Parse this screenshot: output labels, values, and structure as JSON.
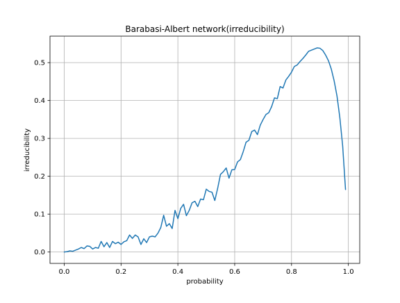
{
  "chart_data": {
    "type": "line",
    "title": "Barabasi-Albert network(irreducibility)",
    "xlabel": "probability",
    "ylabel": "irreducibility",
    "xlim": [
      -0.05,
      1.04
    ],
    "ylim": [
      -0.03,
      0.57
    ],
    "xticks": [
      0.0,
      0.2,
      0.4,
      0.6,
      0.8,
      1.0
    ],
    "xtick_labels": [
      "0.0",
      "0.2",
      "0.4",
      "0.6",
      "0.8",
      "1.0"
    ],
    "yticks": [
      0.0,
      0.1,
      0.2,
      0.3,
      0.4,
      0.5
    ],
    "ytick_labels": [
      "0.0",
      "0.1",
      "0.2",
      "0.3",
      "0.4",
      "0.5"
    ],
    "grid": true,
    "line_color": "#1f77b4",
    "series": [
      {
        "x": [
          0.0,
          0.01,
          0.02,
          0.03,
          0.04,
          0.05,
          0.06,
          0.07,
          0.08,
          0.09,
          0.1,
          0.11,
          0.12,
          0.13,
          0.14,
          0.15,
          0.16,
          0.17,
          0.18,
          0.19,
          0.2,
          0.21,
          0.22,
          0.23,
          0.24,
          0.25,
          0.26,
          0.27,
          0.28,
          0.29,
          0.3,
          0.31,
          0.32,
          0.33,
          0.34,
          0.35,
          0.36,
          0.37,
          0.38,
          0.39,
          0.4,
          0.41,
          0.42,
          0.43,
          0.44,
          0.45,
          0.46,
          0.47,
          0.48,
          0.49,
          0.5,
          0.51,
          0.52,
          0.53,
          0.54,
          0.55,
          0.56,
          0.57,
          0.58,
          0.59,
          0.6,
          0.61,
          0.62,
          0.63,
          0.64,
          0.65,
          0.66,
          0.67,
          0.68,
          0.69,
          0.7,
          0.71,
          0.72,
          0.73,
          0.74,
          0.75,
          0.76,
          0.77,
          0.78,
          0.79,
          0.8,
          0.81,
          0.82,
          0.83,
          0.84,
          0.85,
          0.86,
          0.87,
          0.88,
          0.89,
          0.9,
          0.91,
          0.92,
          0.93,
          0.94,
          0.95,
          0.96,
          0.97,
          0.98,
          0.99
        ],
        "values": [
          0.0,
          0.001,
          0.003,
          0.002,
          0.005,
          0.008,
          0.012,
          0.009,
          0.016,
          0.015,
          0.008,
          0.012,
          0.01,
          0.028,
          0.014,
          0.025,
          0.012,
          0.028,
          0.022,
          0.026,
          0.02,
          0.027,
          0.03,
          0.045,
          0.036,
          0.045,
          0.04,
          0.02,
          0.035,
          0.025,
          0.04,
          0.042,
          0.04,
          0.05,
          0.065,
          0.097,
          0.068,
          0.075,
          0.062,
          0.11,
          0.088,
          0.115,
          0.126,
          0.096,
          0.11,
          0.13,
          0.134,
          0.12,
          0.14,
          0.138,
          0.166,
          0.16,
          0.158,
          0.136,
          0.168,
          0.205,
          0.212,
          0.222,
          0.195,
          0.217,
          0.218,
          0.238,
          0.244,
          0.265,
          0.29,
          0.295,
          0.318,
          0.322,
          0.31,
          0.335,
          0.35,
          0.363,
          0.368,
          0.384,
          0.407,
          0.405,
          0.437,
          0.433,
          0.454,
          0.464,
          0.475,
          0.49,
          0.494,
          0.503,
          0.511,
          0.52,
          0.53,
          0.533,
          0.536,
          0.539,
          0.538,
          0.532,
          0.52,
          0.505,
          0.483,
          0.452,
          0.412,
          0.355,
          0.28,
          0.165
        ]
      }
    ]
  }
}
